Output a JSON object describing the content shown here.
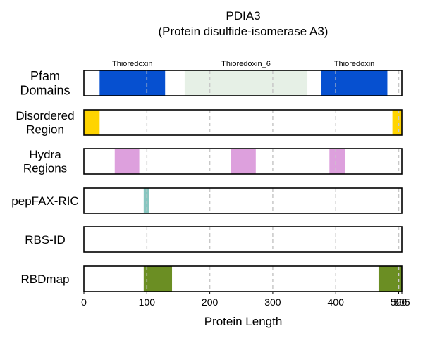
{
  "chart_data": {
    "type": "track",
    "title_line1": "PDIA3",
    "title_line2": "(Protein disulfide-isomerase A3)",
    "xlabel": "Protein Length",
    "xlim": [
      0,
      505
    ],
    "xticks": [
      0,
      100,
      200,
      300,
      400,
      500,
      505
    ],
    "xtick_labels": [
      "0",
      "100",
      "200",
      "300",
      "400",
      "500",
      "505"
    ],
    "vlines": [
      100,
      200,
      300,
      400,
      500
    ],
    "tracks": [
      {
        "label_lines": [
          "Pfam",
          "Domains"
        ],
        "segments": [
          {
            "start": 25,
            "end": 129,
            "color": "#0650d0",
            "label": "Thioredoxin"
          },
          {
            "start": 160,
            "end": 355,
            "color": "#e6f0e6",
            "label": "Thioredoxin_6"
          },
          {
            "start": 377,
            "end": 482,
            "color": "#0650d0",
            "label": "Thioredoxin"
          }
        ]
      },
      {
        "label_lines": [
          "Disordered",
          "Region"
        ],
        "segments": [
          {
            "start": 0,
            "end": 25,
            "color": "#ffd400"
          },
          {
            "start": 490,
            "end": 505,
            "color": "#ffd400"
          }
        ]
      },
      {
        "label_lines": [
          "Hydra",
          "Regions"
        ],
        "segments": [
          {
            "start": 49,
            "end": 88,
            "color": "#dda0dd"
          },
          {
            "start": 233,
            "end": 273,
            "color": "#dda0dd"
          },
          {
            "start": 390,
            "end": 415,
            "color": "#dda0dd"
          }
        ]
      },
      {
        "label_lines": [
          "pepFAX-RIC"
        ],
        "segments": [
          {
            "start": 95,
            "end": 103,
            "color": "#88c6c0"
          }
        ]
      },
      {
        "label_lines": [
          "RBS-ID"
        ],
        "segments": []
      },
      {
        "label_lines": [
          "RBDmap"
        ],
        "segments": [
          {
            "start": 95,
            "end": 140,
            "color": "#6b8e23"
          },
          {
            "start": 468,
            "end": 505,
            "color": "#6b8e23"
          }
        ]
      }
    ]
  }
}
